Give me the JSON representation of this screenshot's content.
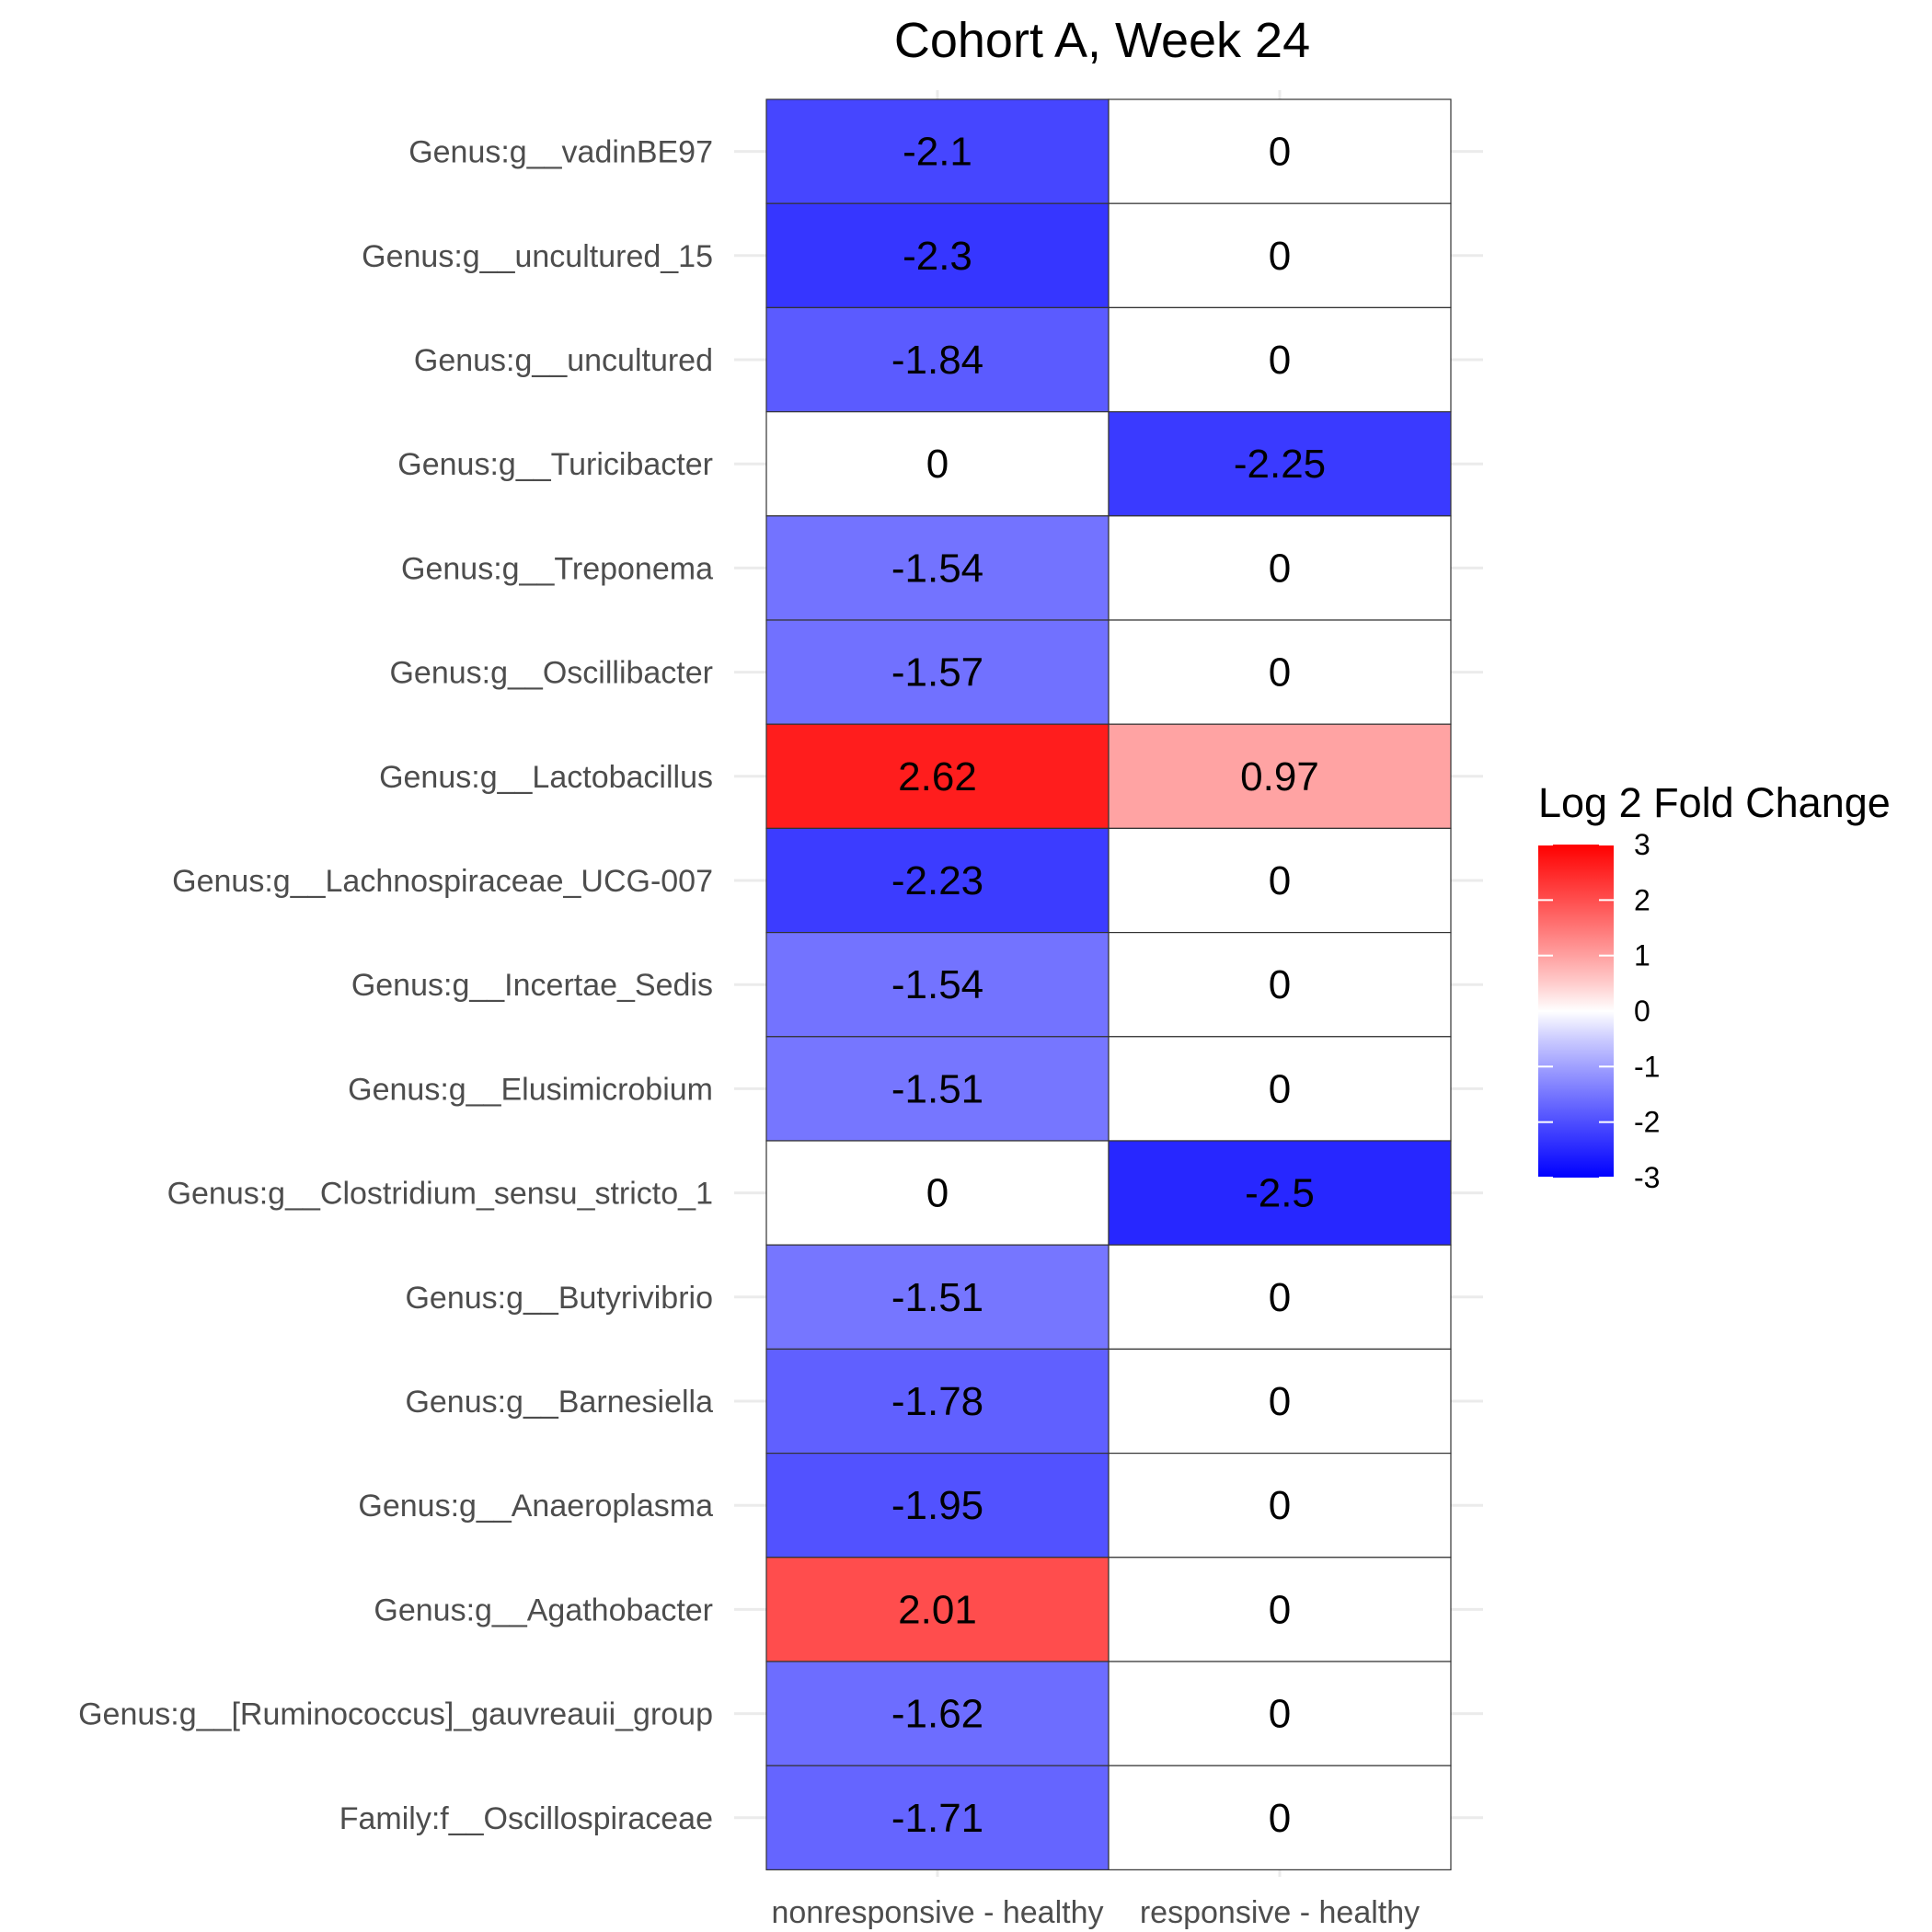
{
  "chart_data": {
    "type": "heatmap",
    "title": "Cohort A, Week 24",
    "xlabel": "",
    "ylabel": "",
    "columns": [
      "nonresponsive - healthy",
      "responsive - healthy"
    ],
    "rows": [
      "Genus:g__vadinBE97",
      "Genus:g__uncultured_15",
      "Genus:g__uncultured",
      "Genus:g__Turicibacter",
      "Genus:g__Treponema",
      "Genus:g__Oscillibacter",
      "Genus:g__Lactobacillus",
      "Genus:g__Lachnospiraceae_UCG-007",
      "Genus:g__Incertae_Sedis",
      "Genus:g__Elusimicrobium",
      "Genus:g__Clostridium_sensu_stricto_1",
      "Genus:g__Butyrivibrio",
      "Genus:g__Barnesiella",
      "Genus:g__Anaeroplasma",
      "Genus:g__Agathobacter",
      "Genus:g__[Ruminococcus]_gauvreauii_group",
      "Family:f__Oscillospiraceae"
    ],
    "values": [
      [
        -2.1,
        0
      ],
      [
        -2.3,
        0
      ],
      [
        -1.84,
        0
      ],
      [
        0,
        -2.25
      ],
      [
        -1.54,
        0
      ],
      [
        -1.57,
        0
      ],
      [
        2.62,
        0.97
      ],
      [
        -2.23,
        0
      ],
      [
        -1.54,
        0
      ],
      [
        -1.51,
        0
      ],
      [
        0,
        -2.5
      ],
      [
        -1.51,
        0
      ],
      [
        -1.78,
        0
      ],
      [
        -1.95,
        0
      ],
      [
        2.01,
        0
      ],
      [
        -1.62,
        0
      ],
      [
        -1.71,
        0
      ]
    ],
    "value_labels": [
      [
        "-2.1",
        "0"
      ],
      [
        "-2.3",
        "0"
      ],
      [
        "-1.84",
        "0"
      ],
      [
        "0",
        "-2.25"
      ],
      [
        "-1.54",
        "0"
      ],
      [
        "-1.57",
        "0"
      ],
      [
        "2.62",
        "0.97"
      ],
      [
        "-2.23",
        "0"
      ],
      [
        "-1.54",
        "0"
      ],
      [
        "-1.51",
        "0"
      ],
      [
        "0",
        "-2.5"
      ],
      [
        "-1.51",
        "0"
      ],
      [
        "-1.78",
        "0"
      ],
      [
        "-1.95",
        "0"
      ],
      [
        "2.01",
        "0"
      ],
      [
        "-1.62",
        "0"
      ],
      [
        "-1.71",
        "0"
      ]
    ],
    "color_scale": {
      "low_color": "#0000ff",
      "mid_color": "#ffffff",
      "high_color": "#ff0000",
      "limits": [
        -3,
        3
      ],
      "midpoint": 0
    },
    "legend": {
      "title": "Log 2 Fold Change",
      "ticks": [
        3,
        2,
        1,
        0,
        -1,
        -2,
        -3
      ],
      "tick_labels": [
        "3",
        "2",
        "1",
        "0",
        "-1",
        "-2",
        "-3"
      ],
      "position": "right"
    },
    "grid": true,
    "grid_color": "#ebebeb",
    "cell_border_color": "#333333"
  }
}
